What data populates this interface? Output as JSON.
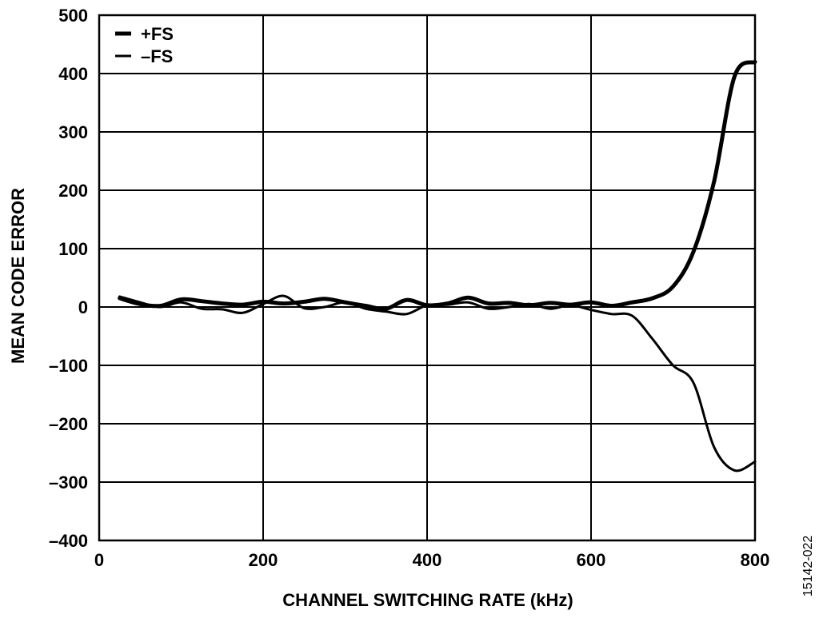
{
  "chart_data": {
    "type": "line",
    "xlabel": "CHANNEL SWITCHING RATE  (kHz)",
    "ylabel": "MEAN CODE ERROR",
    "xlim": [
      0,
      800
    ],
    "ylim": [
      -400,
      500
    ],
    "xticks": [
      0,
      200,
      400,
      600,
      800
    ],
    "xtick_labels": [
      "0",
      "200",
      "400",
      "600",
      "800"
    ],
    "yticks": [
      500,
      400,
      300,
      200,
      100,
      0,
      -100,
      -200,
      -300,
      -400
    ],
    "ytick_labels": [
      "500",
      "400",
      "300",
      "200",
      "100",
      "0",
      "–100",
      "–200",
      "–300",
      "–400"
    ],
    "grid": true,
    "legend_position": "top-left",
    "series": [
      {
        "name": "+FS",
        "x": [
          25,
          50,
          75,
          100,
          125,
          150,
          175,
          200,
          225,
          250,
          275,
          300,
          325,
          350,
          375,
          400,
          425,
          450,
          475,
          500,
          525,
          550,
          575,
          600,
          625,
          650,
          675,
          700,
          725,
          750,
          775,
          800
        ],
        "y": [
          15,
          5,
          2,
          13,
          10,
          6,
          4,
          9,
          6,
          9,
          14,
          8,
          2,
          -3,
          12,
          3,
          6,
          16,
          6,
          7,
          3,
          7,
          4,
          8,
          2,
          8,
          15,
          35,
          95,
          215,
          395,
          420
        ]
      },
      {
        "name": "–FS",
        "x": [
          25,
          50,
          75,
          100,
          125,
          150,
          175,
          200,
          225,
          250,
          275,
          300,
          325,
          350,
          375,
          400,
          425,
          450,
          475,
          500,
          525,
          550,
          575,
          600,
          625,
          650,
          675,
          700,
          725,
          750,
          775,
          800
        ],
        "y": [
          18,
          8,
          0,
          8,
          -3,
          -4,
          -10,
          5,
          19,
          -2,
          0,
          8,
          -3,
          -8,
          -12,
          3,
          4,
          8,
          -3,
          0,
          5,
          -3,
          3,
          -5,
          -12,
          -15,
          -55,
          -100,
          -130,
          -240,
          -280,
          -265
        ]
      }
    ]
  },
  "figure_id": "15142-022"
}
